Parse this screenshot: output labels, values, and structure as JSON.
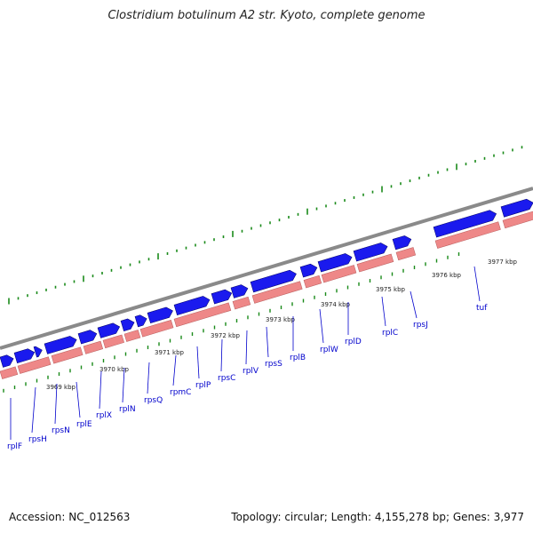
{
  "title": "Clostridium botulinum A2 str. Kyoto, complete genome",
  "footer": {
    "accession": "Accession: NC_012563",
    "topology": "Topology: circular",
    "length": "Length: 4,155,278 bp",
    "genes": "Genes: 3,977"
  },
  "colors": {
    "backbone": "#8a8a8a",
    "cds_forward": "#1a1aee",
    "cds_track": "#ee8888",
    "ticks": "#1a8a1a",
    "label": "#0000cc"
  },
  "kbp_ticks": [
    "3969 kbp",
    "3970 kbp",
    "3971 kbp",
    "3972 kbp",
    "3973 kbp",
    "3974 kbp",
    "3975 kbp",
    "3976 kbp",
    "3977 kbp"
  ],
  "genes": [
    "rplF",
    "rpsH",
    "rpsN",
    "rplE",
    "rplX",
    "rplN",
    "rpsQ",
    "rpmC",
    "rplP",
    "rpsC",
    "rplV",
    "rpsS",
    "rplB",
    "rplW",
    "rplD",
    "rplC",
    "rpsJ",
    "tuf"
  ]
}
